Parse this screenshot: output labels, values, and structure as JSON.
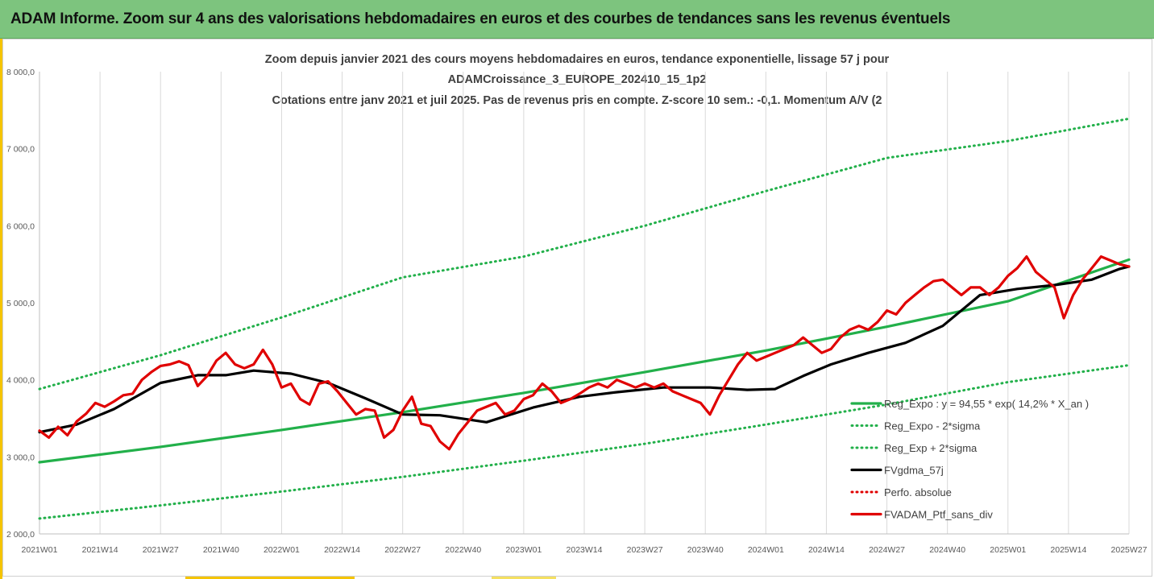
{
  "banner": {
    "title": "ADAM Informe. Zoom sur 4 ans des valorisations hebdomadaires en euros et des courbes de tendances sans les revenus éventuels"
  },
  "colors": {
    "banner": "#7dc47e",
    "reg_expo": "#22b04a",
    "sigma": "#22b04a",
    "moving_avg": "#000000",
    "perfo_absolue": "#e00000",
    "portfolio": "#e00000",
    "grid": "#d9d9d9"
  },
  "chart_data": {
    "type": "line",
    "title_lines": [
      "Zoom depuis janvier 2021 des cours moyens hebdomadaires  en euros, tendance exponentielle, lissage 57 j pour",
      "ADAMCroissance_3_EUROPE_202410_15_1p2",
      "Cotations  entre janv 2021 et juil 2025. Pas de revenus pris en compte. Z-score 10 sem.: -0,1. Momentum  A/V (2"
    ],
    "ylim": [
      2000,
      8000
    ],
    "y_ticks": [
      2000,
      3000,
      4000,
      5000,
      6000,
      7000,
      8000
    ],
    "y_tick_labels": [
      "2 000,0",
      "3 000,0",
      "4 000,0",
      "5 000,0",
      "6 000,0",
      "7 000,0",
      "8 000,0"
    ],
    "x_tick_labels": [
      "2021W01",
      "2021W14",
      "2021W27",
      "2021W40",
      "2022W01",
      "2022W14",
      "2022W27",
      "2022W40",
      "2023W01",
      "2023W14",
      "2023W27",
      "2023W40",
      "2024W01",
      "2024W14",
      "2024W27",
      "2024W40",
      "2025W01",
      "2025W14",
      "2025W27"
    ],
    "grid": {
      "vertical": true,
      "horizontal": false
    },
    "legend_position": "bottom-right",
    "series": [
      {
        "name": "Reg_Expo : y = 94,55 * exp( 14,2% *  X_an )",
        "style": "solid-thick",
        "color": "#22b04a",
        "x": [
          0,
          26,
          52,
          78,
          104,
          130,
          156,
          182,
          208,
          234
        ],
        "y": [
          2930,
          3130,
          3350,
          3580,
          3830,
          4100,
          4380,
          4690,
          5020,
          5560
        ]
      },
      {
        "name": "Reg_Expo - 2*sigma",
        "style": "dotted",
        "color": "#22b04a",
        "x": [
          0,
          26,
          52,
          78,
          104,
          130,
          156,
          182,
          208,
          234
        ],
        "y": [
          2200,
          2370,
          2550,
          2740,
          2950,
          3170,
          3420,
          3680,
          3970,
          4190
        ]
      },
      {
        "name": "Reg_Exp + 2*sigma",
        "style": "dotted",
        "color": "#22b04a",
        "x": [
          0,
          26,
          52,
          78,
          104,
          130,
          156,
          182,
          208,
          234
        ],
        "y": [
          3880,
          4320,
          4810,
          5330,
          5600,
          6000,
          6450,
          6880,
          7100,
          7390
        ]
      },
      {
        "name": "FVgdma_57j",
        "style": "solid-thick",
        "color": "#000000",
        "x": [
          0,
          8,
          16,
          26,
          34,
          40,
          46,
          54,
          62,
          70,
          78,
          86,
          96,
          106,
          116,
          124,
          134,
          144,
          152,
          158,
          164,
          170,
          178,
          186,
          194,
          202,
          210,
          218,
          226,
          232,
          234
        ],
        "y": [
          3320,
          3420,
          3620,
          3960,
          4060,
          4060,
          4120,
          4080,
          3960,
          3760,
          3550,
          3540,
          3450,
          3640,
          3780,
          3840,
          3900,
          3900,
          3870,
          3880,
          4050,
          4200,
          4350,
          4480,
          4700,
          5100,
          5180,
          5230,
          5300,
          5440,
          5470
        ]
      },
      {
        "name": "Perfo. absolue",
        "style": "dotted",
        "color": "#e00000",
        "x": [],
        "y": []
      },
      {
        "name": "FVADAM_Ptf_sans_div",
        "style": "solid-thick",
        "color": "#e00000",
        "x": [
          0,
          2,
          4,
          6,
          8,
          10,
          12,
          14,
          16,
          18,
          20,
          22,
          24,
          26,
          28,
          30,
          32,
          34,
          36,
          38,
          40,
          42,
          44,
          46,
          48,
          50,
          52,
          54,
          56,
          58,
          60,
          62,
          64,
          66,
          68,
          70,
          72,
          74,
          76,
          78,
          80,
          82,
          84,
          86,
          88,
          90,
          92,
          94,
          96,
          98,
          100,
          102,
          104,
          106,
          108,
          110,
          112,
          114,
          116,
          118,
          120,
          122,
          124,
          126,
          128,
          130,
          132,
          134,
          136,
          138,
          140,
          142,
          144,
          146,
          148,
          150,
          152,
          154,
          156,
          158,
          160,
          162,
          164,
          166,
          168,
          170,
          172,
          174,
          176,
          178,
          180,
          182,
          184,
          186,
          188,
          190,
          192,
          194,
          196,
          198,
          200,
          202,
          204,
          206,
          208,
          210,
          212,
          214,
          216,
          218,
          220,
          222,
          224,
          226,
          228,
          230,
          232,
          234
        ],
        "y": [
          3340,
          3250,
          3390,
          3280,
          3460,
          3560,
          3700,
          3650,
          3720,
          3800,
          3820,
          4000,
          4100,
          4180,
          4200,
          4240,
          4190,
          3920,
          4050,
          4250,
          4350,
          4200,
          4150,
          4200,
          4390,
          4200,
          3900,
          3950,
          3750,
          3680,
          3950,
          3980,
          3850,
          3700,
          3550,
          3620,
          3600,
          3250,
          3350,
          3600,
          3780,
          3430,
          3400,
          3200,
          3100,
          3300,
          3450,
          3600,
          3650,
          3700,
          3550,
          3600,
          3750,
          3800,
          3950,
          3850,
          3700,
          3750,
          3820,
          3900,
          3950,
          3900,
          4000,
          3950,
          3900,
          3950,
          3900,
          3950,
          3850,
          3800,
          3750,
          3700,
          3550,
          3800,
          4000,
          4200,
          4350,
          4250,
          4300,
          4350,
          4400,
          4450,
          4550,
          4450,
          4350,
          4400,
          4550,
          4650,
          4700,
          4650,
          4750,
          4900,
          4850,
          5000,
          5100,
          5200,
          5280,
          5300,
          5200,
          5100,
          5200,
          5200,
          5100,
          5200,
          5350,
          5450,
          5600,
          5400,
          5300,
          5200,
          4800,
          5100,
          5300,
          5450,
          5600,
          5550,
          5500,
          5470
        ]
      }
    ]
  }
}
